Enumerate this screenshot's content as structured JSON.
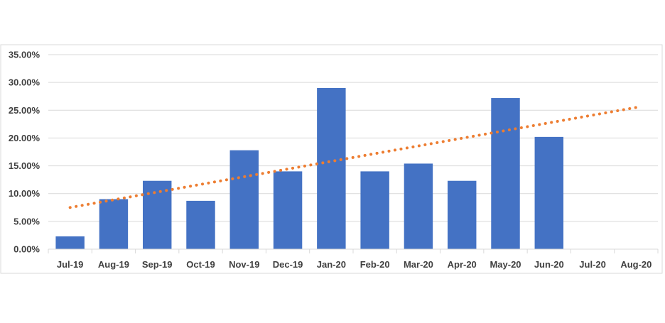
{
  "colors": {
    "bar": "#4472C4",
    "trendline": "#ED7D31",
    "grid": "#D9D9D9",
    "text": "#404040",
    "border": "#D9D9D9"
  },
  "chart_data": {
    "type": "bar",
    "title": "",
    "xlabel": "",
    "ylabel": "",
    "categories": [
      "Jul-19",
      "Aug-19",
      "Sep-19",
      "Oct-19",
      "Nov-19",
      "Dec-19",
      "Jan-20",
      "Feb-20",
      "Mar-20",
      "Apr-20",
      "May-20",
      "Jun-20",
      "Jul-20",
      "Aug-20"
    ],
    "series": [
      {
        "values": [
          2.3,
          9.0,
          12.3,
          8.7,
          17.8,
          14.0,
          29.0,
          14.0,
          15.4,
          12.3,
          27.2,
          20.2,
          null,
          null
        ]
      }
    ],
    "trendline": {
      "type": "linear",
      "style": "dotted",
      "start_category": "Jul-19",
      "end_category": "Aug-20",
      "start_value": 7.5,
      "end_value": 25.5
    },
    "ylim": [
      0,
      35
    ],
    "y_ticks": [
      "0.00%",
      "5.00%",
      "10.00%",
      "15.00%",
      "20.00%",
      "25.00%",
      "30.00%",
      "35.00%"
    ],
    "y_tick_values": [
      0,
      5,
      10,
      15,
      20,
      25,
      30,
      35
    ],
    "grid": true,
    "legend": "none"
  }
}
